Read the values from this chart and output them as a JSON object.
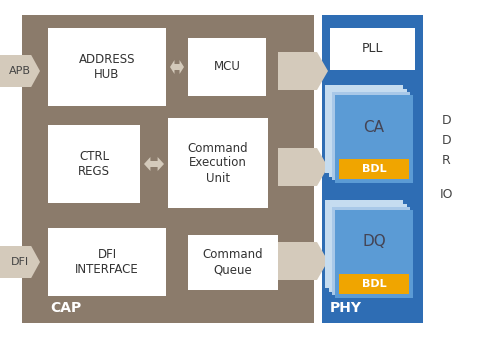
{
  "bg_color": "#ffffff",
  "cap_bg": "#8B7B6B",
  "phy_bg": "#2E6DB4",
  "ddr_io_bg": "#ffffff",
  "box_white": "#ffffff",
  "box_light_blue1": "#C5DCF0",
  "box_light_blue2": "#A8C8E8",
  "box_blue": "#5B9BD5",
  "box_orange": "#F0A500",
  "arrow_color": "#D4CABB",
  "title_cap": "CAP",
  "title_phy": "PHY",
  "label_apb": "APB",
  "label_dfi": "DFI",
  "label_pll": "PLL",
  "label_ca": "CA",
  "label_dq": "DQ",
  "label_bdl": "BDL",
  "label_address_hub": "ADDRESS\nHUB",
  "label_mcu": "MCU",
  "label_ctrl_regs": "CTRL\nREGS",
  "label_cmd_exec": "Command\nExecution\nUnit",
  "label_dfi_if": "DFI\nINTERFACE",
  "label_cmd_queue": "Command\nQueue",
  "ddr_d": "D",
  "ddr_d2": "D",
  "ddr_r": "R",
  "ddr_io": "IO"
}
